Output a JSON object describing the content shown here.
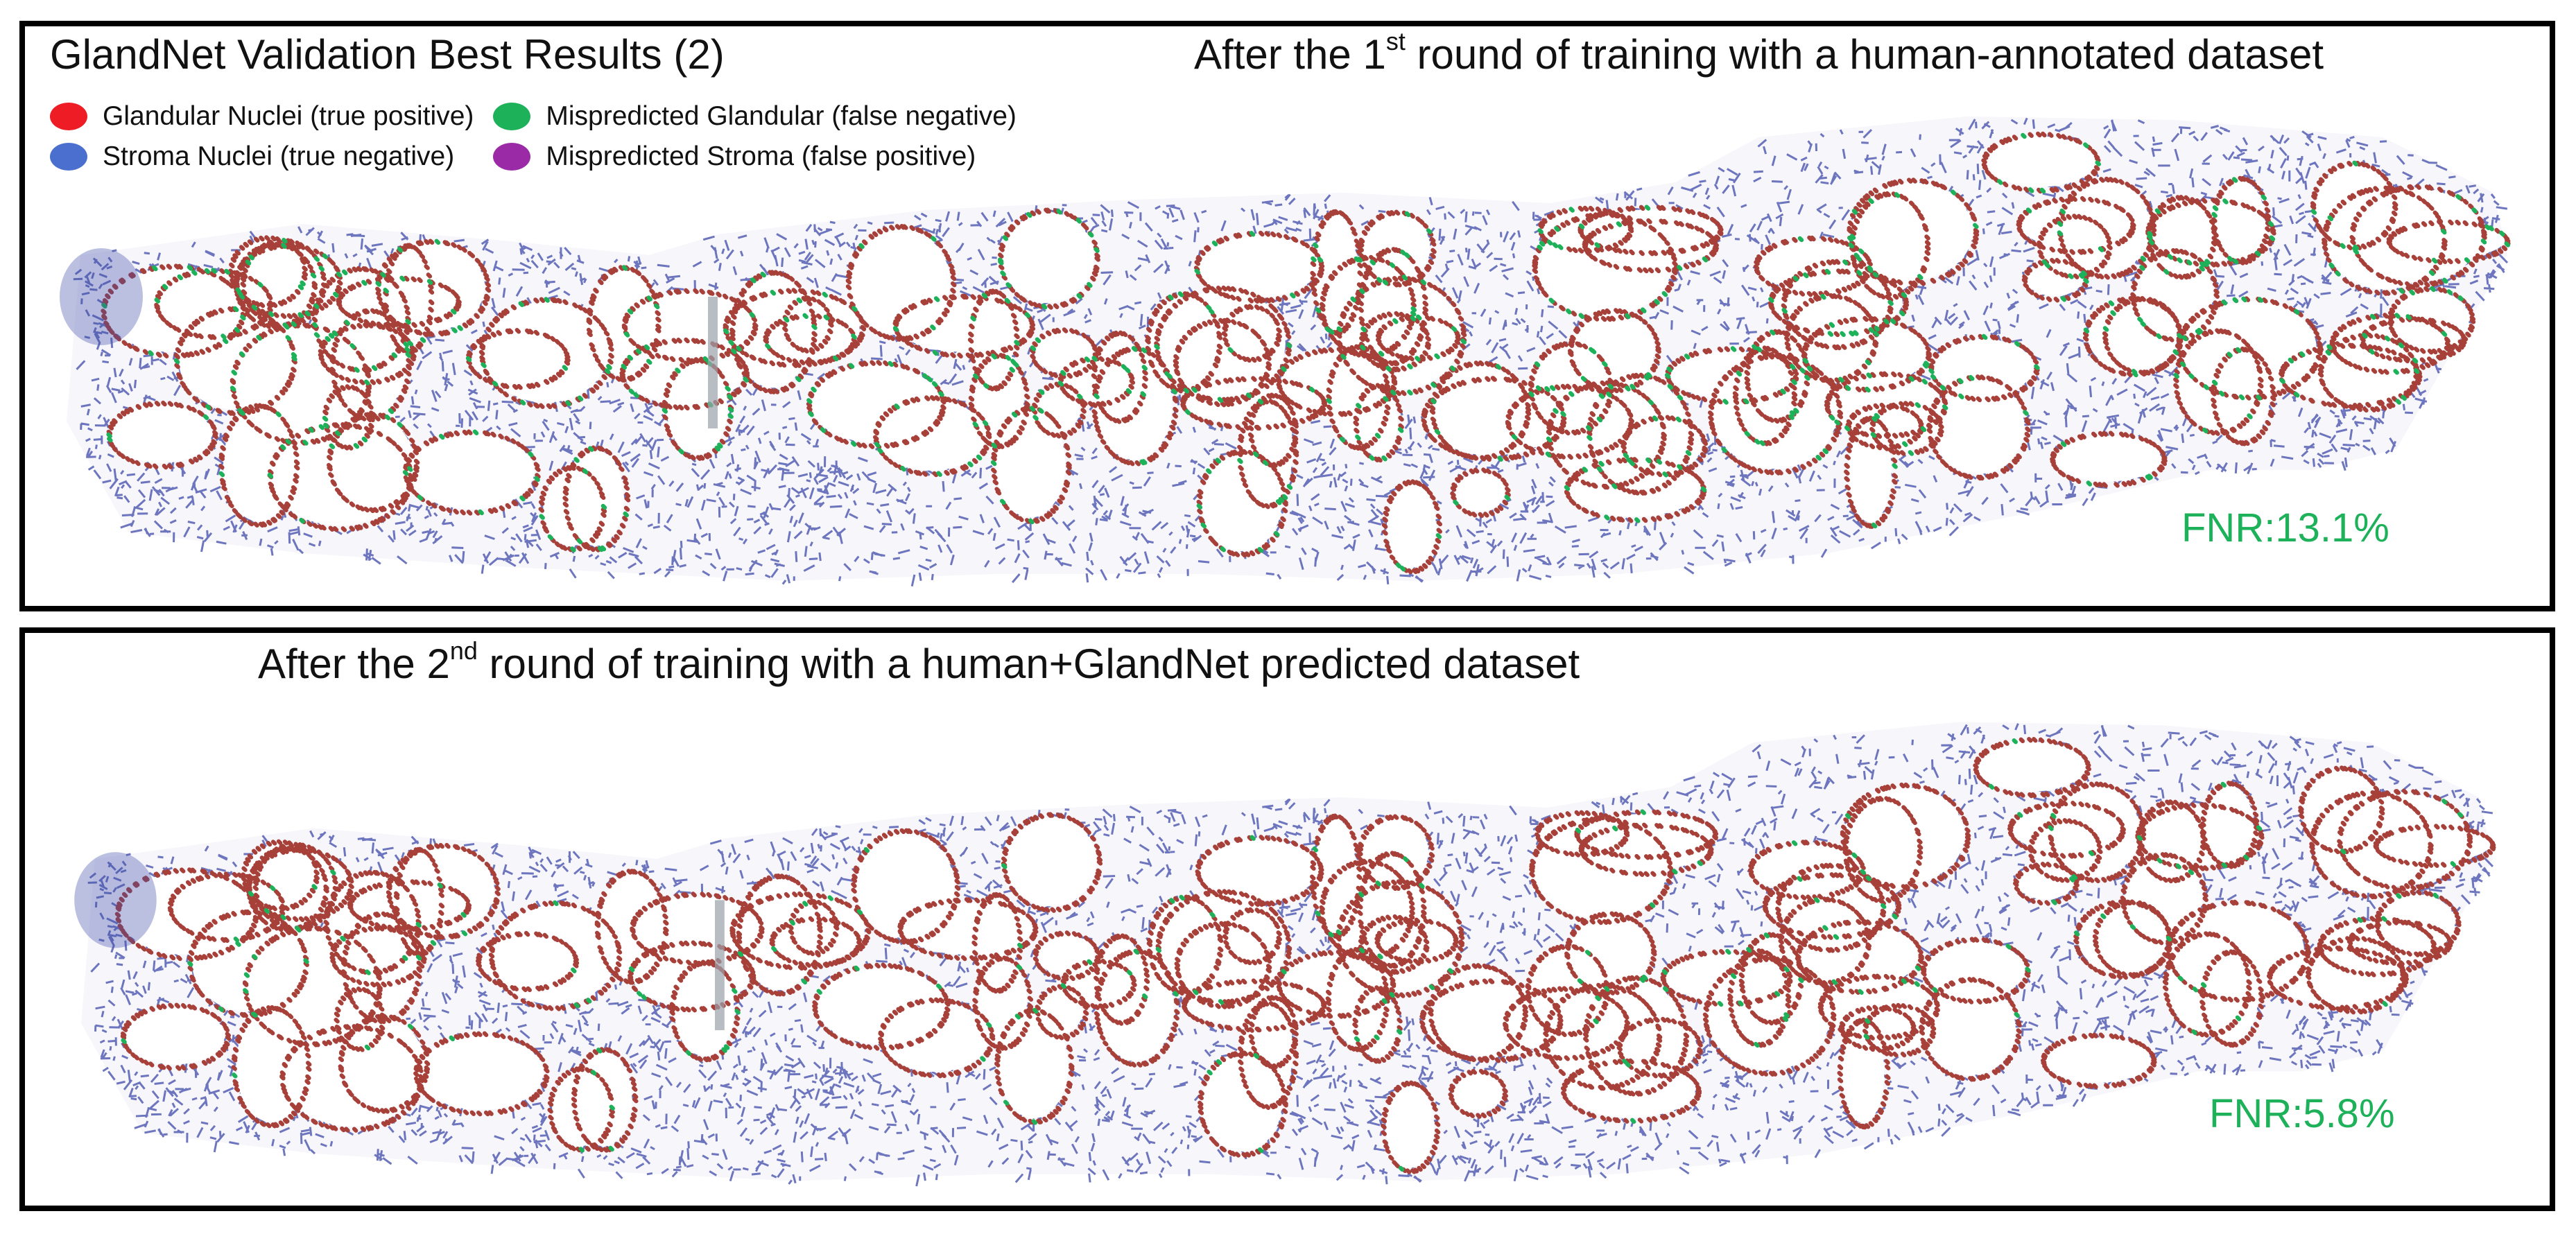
{
  "figure_title": "GlandNet Validation Best Results (2)",
  "legend": [
    {
      "label": "Glandular Nuclei (true positive)",
      "color": "#ee1c24",
      "icon": "ellipse-swatch"
    },
    {
      "label": "Mispredicted Glandular (false negative)",
      "color": "#1db15a",
      "icon": "ellipse-swatch"
    },
    {
      "label": "Stroma Nuclei (true negative)",
      "color": "#4a6fcf",
      "icon": "ellipse-swatch"
    },
    {
      "label": "Mispredicted Stroma (false positive)",
      "color": "#9b2aa6",
      "icon": "ellipse-swatch"
    }
  ],
  "panels": [
    {
      "heading": {
        "prefix": "After the 1",
        "sup": "st",
        "suffix": " round of training with a human-annotated dataset"
      },
      "metric": "FNR:13.1%"
    },
    {
      "heading": {
        "prefix": "After the 2",
        "sup": "nd",
        "suffix": " round of training with a human+GlandNet predicted dataset"
      },
      "metric": "FNR:5.8%"
    }
  ],
  "colors": {
    "glandular": "#a8403a",
    "stroma": "#3d4aa8",
    "false_negative": "#1db15a",
    "false_positive": "#9b2aa6",
    "metric": "#1db15a"
  }
}
